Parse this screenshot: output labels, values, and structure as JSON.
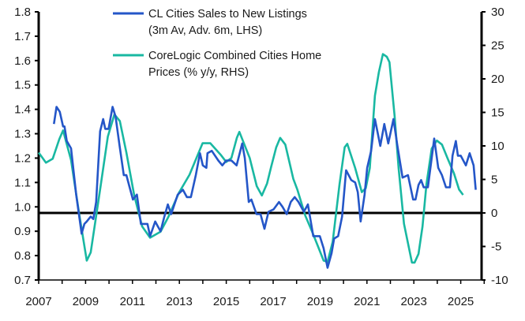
{
  "chart_data": {
    "type": "line",
    "title": "",
    "xlabel": "",
    "ylabel_left": "",
    "ylabel_right": "",
    "xlim": [
      2007,
      2026
    ],
    "ylim_left": [
      0.7,
      1.8
    ],
    "ylim_right": [
      -10,
      30
    ],
    "grid": false,
    "legend_position": "top-center",
    "x_ticks": [
      "2007",
      "2009",
      "2011",
      "2013",
      "2015",
      "2017",
      "2019",
      "2021",
      "2023",
      "2025"
    ],
    "y_left_ticks": [
      "0.7",
      "0.8",
      "0.9",
      "1.0",
      "1.1",
      "1.2",
      "1.3",
      "1.4",
      "1.5",
      "1.6",
      "1.7",
      "1.8"
    ],
    "y_right_ticks": [
      "-10",
      "-5",
      "0",
      "5",
      "10",
      "15",
      "20",
      "25",
      "30"
    ],
    "reference_line_right": 0,
    "colors": {
      "blue": "#2456c8",
      "teal": "#19b8a2"
    },
    "series": [
      {
        "name": "CL Cities Sales to New Listings",
        "name_line2": "(3m Av, Adv. 6m, LHS)",
        "axis": "left",
        "color": "#2456c8",
        "points": [
          [
            2007.65,
            1.34
          ],
          [
            2007.76,
            1.41
          ],
          [
            2007.9,
            1.39
          ],
          [
            2008.04,
            1.33
          ],
          [
            2008.1,
            1.33
          ],
          [
            2008.2,
            1.27
          ],
          [
            2008.38,
            1.24
          ],
          [
            2008.6,
            1.05
          ],
          [
            2008.83,
            0.89
          ],
          [
            2008.95,
            0.93
          ],
          [
            2009.05,
            0.94
          ],
          [
            2009.22,
            0.96
          ],
          [
            2009.33,
            0.95
          ],
          [
            2009.45,
            1.02
          ],
          [
            2009.62,
            1.31
          ],
          [
            2009.75,
            1.36
          ],
          [
            2009.84,
            1.32
          ],
          [
            2009.98,
            1.32
          ],
          [
            2010.15,
            1.41
          ],
          [
            2010.28,
            1.37
          ],
          [
            2010.45,
            1.25
          ],
          [
            2010.63,
            1.13
          ],
          [
            2010.74,
            1.13
          ],
          [
            2010.88,
            1.08
          ],
          [
            2011.02,
            1.03
          ],
          [
            2011.19,
            1.05
          ],
          [
            2011.36,
            0.93
          ],
          [
            2011.64,
            0.93
          ],
          [
            2011.75,
            0.88
          ],
          [
            2011.97,
            0.94
          ],
          [
            2012.08,
            0.92
          ],
          [
            2012.2,
            0.9
          ],
          [
            2012.36,
            0.96
          ],
          [
            2012.51,
            1.01
          ],
          [
            2012.65,
            0.97
          ],
          [
            2012.93,
            1.05
          ],
          [
            2013.15,
            1.07
          ],
          [
            2013.32,
            1.04
          ],
          [
            2013.49,
            1.04
          ],
          [
            2013.7,
            1.13
          ],
          [
            2013.88,
            1.22
          ],
          [
            2014.0,
            1.17
          ],
          [
            2014.15,
            1.16
          ],
          [
            2014.2,
            1.22
          ],
          [
            2014.38,
            1.23
          ],
          [
            2014.66,
            1.19
          ],
          [
            2014.83,
            1.17
          ],
          [
            2015.0,
            1.19
          ],
          [
            2015.22,
            1.19
          ],
          [
            2015.44,
            1.17
          ],
          [
            2015.68,
            1.26
          ],
          [
            2015.79,
            1.2
          ],
          [
            2015.96,
            1.02
          ],
          [
            2016.07,
            1.03
          ],
          [
            2016.29,
            0.97
          ],
          [
            2016.46,
            0.97
          ],
          [
            2016.63,
            0.91
          ],
          [
            2016.8,
            0.98
          ],
          [
            2017.02,
            0.99
          ],
          [
            2017.25,
            1.02
          ],
          [
            2017.4,
            1.0
          ],
          [
            2017.58,
            0.97
          ],
          [
            2017.75,
            1.02
          ],
          [
            2017.92,
            1.04
          ],
          [
            2018.08,
            1.02
          ],
          [
            2018.31,
            0.98
          ],
          [
            2018.48,
            1.01
          ],
          [
            2018.71,
            0.88
          ],
          [
            2018.99,
            0.88
          ],
          [
            2019.15,
            0.83
          ],
          [
            2019.32,
            0.75
          ],
          [
            2019.49,
            0.81
          ],
          [
            2019.6,
            0.87
          ],
          [
            2019.77,
            0.88
          ],
          [
            2019.94,
            0.96
          ],
          [
            2020.11,
            1.15
          ],
          [
            2020.33,
            1.11
          ],
          [
            2020.5,
            1.1
          ],
          [
            2020.61,
            1.06
          ],
          [
            2020.73,
            0.94
          ],
          [
            2020.9,
            1.05
          ],
          [
            2021.01,
            1.16
          ],
          [
            2021.18,
            1.23
          ],
          [
            2021.34,
            1.36
          ],
          [
            2021.57,
            1.25
          ],
          [
            2021.74,
            1.34
          ],
          [
            2021.91,
            1.26
          ],
          [
            2022.13,
            1.36
          ],
          [
            2022.3,
            1.25
          ],
          [
            2022.52,
            1.12
          ],
          [
            2022.75,
            1.13
          ],
          [
            2022.97,
            1.03
          ],
          [
            2023.07,
            1.03
          ],
          [
            2023.2,
            1.09
          ],
          [
            2023.31,
            1.11
          ],
          [
            2023.42,
            1.08
          ],
          [
            2023.6,
            1.08
          ],
          [
            2023.87,
            1.28
          ],
          [
            2024.04,
            1.16
          ],
          [
            2024.2,
            1.13
          ],
          [
            2024.37,
            1.08
          ],
          [
            2024.54,
            1.08
          ],
          [
            2024.65,
            1.21
          ],
          [
            2024.79,
            1.27
          ],
          [
            2024.88,
            1.21
          ],
          [
            2025.0,
            1.21
          ],
          [
            2025.22,
            1.17
          ],
          [
            2025.38,
            1.22
          ],
          [
            2025.55,
            1.17
          ],
          [
            2025.64,
            1.07
          ]
        ]
      },
      {
        "name": "CoreLogic Combined Cities Home",
        "name_line2": "Prices (% y/y, RHS)",
        "axis": "right",
        "color": "#19b8a2",
        "points": [
          [
            2007.0,
            9.0
          ],
          [
            2007.31,
            7.5
          ],
          [
            2007.6,
            8.1
          ],
          [
            2007.88,
            11.0
          ],
          [
            2008.04,
            12.3
          ],
          [
            2008.38,
            7.9
          ],
          [
            2008.72,
            0.0
          ],
          [
            2009.05,
            -7.1
          ],
          [
            2009.22,
            -5.9
          ],
          [
            2009.62,
            3.5
          ],
          [
            2009.95,
            11.4
          ],
          [
            2010.23,
            14.7
          ],
          [
            2010.46,
            13.7
          ],
          [
            2010.74,
            9.0
          ],
          [
            2011.07,
            2.7
          ],
          [
            2011.41,
            -2.0
          ],
          [
            2011.75,
            -3.7
          ],
          [
            2012.2,
            -2.8
          ],
          [
            2012.53,
            -0.6
          ],
          [
            2012.98,
            3.0
          ],
          [
            2013.43,
            5.7
          ],
          [
            2013.99,
            10.4
          ],
          [
            2014.32,
            10.4
          ],
          [
            2014.78,
            8.6
          ],
          [
            2015.0,
            7.6
          ],
          [
            2015.22,
            8.2
          ],
          [
            2015.45,
            11.2
          ],
          [
            2015.56,
            12.1
          ],
          [
            2016.0,
            8.2
          ],
          [
            2016.3,
            4.0
          ],
          [
            2016.52,
            2.6
          ],
          [
            2016.74,
            4.4
          ],
          [
            2016.91,
            6.8
          ],
          [
            2017.13,
            9.8
          ],
          [
            2017.3,
            11.2
          ],
          [
            2017.52,
            10.2
          ],
          [
            2017.86,
            5.1
          ],
          [
            2018.03,
            3.5
          ],
          [
            2018.37,
            -0.4
          ],
          [
            2018.65,
            -2.7
          ],
          [
            2018.88,
            -4.7
          ],
          [
            2019.15,
            -7.1
          ],
          [
            2019.32,
            -7.3
          ],
          [
            2019.54,
            -4.3
          ],
          [
            2019.83,
            4.3
          ],
          [
            2020.05,
            9.8
          ],
          [
            2020.16,
            10.3
          ],
          [
            2020.5,
            6.7
          ],
          [
            2020.78,
            3.1
          ],
          [
            2020.95,
            3.7
          ],
          [
            2021.12,
            6.7
          ],
          [
            2021.34,
            17.5
          ],
          [
            2021.51,
            21.0
          ],
          [
            2021.68,
            23.7
          ],
          [
            2021.85,
            23.3
          ],
          [
            2021.96,
            22.5
          ],
          [
            2022.18,
            14.5
          ],
          [
            2022.35,
            6.7
          ],
          [
            2022.58,
            -1.6
          ],
          [
            2022.92,
            -7.4
          ],
          [
            2023.03,
            -7.4
          ],
          [
            2023.2,
            -6.1
          ],
          [
            2023.37,
            -2.0
          ],
          [
            2023.54,
            4.3
          ],
          [
            2023.76,
            9.6
          ],
          [
            2023.98,
            10.8
          ],
          [
            2024.2,
            10.2
          ],
          [
            2024.43,
            8.2
          ],
          [
            2024.71,
            5.9
          ],
          [
            2024.93,
            3.5
          ],
          [
            2025.1,
            2.7
          ]
        ]
      }
    ]
  }
}
